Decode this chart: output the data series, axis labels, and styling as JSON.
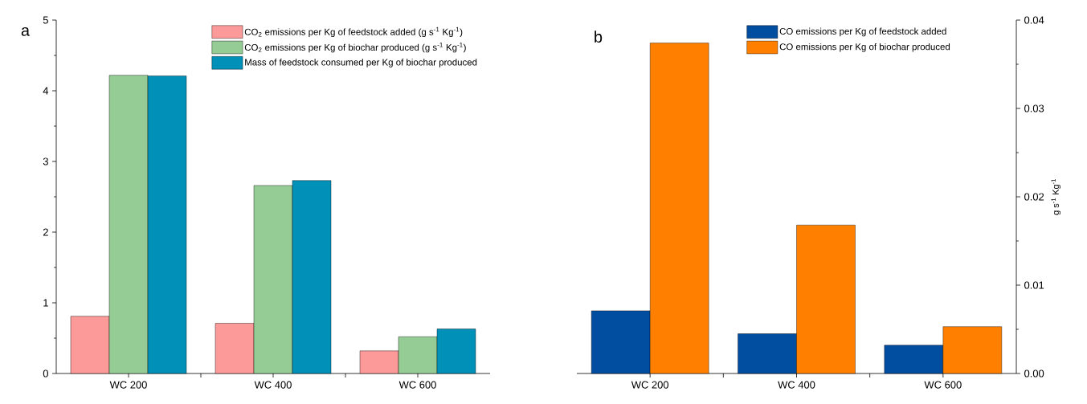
{
  "chart_data": [
    {
      "type": "bar",
      "annotations": [
        "a"
      ],
      "categories": [
        "WC 200",
        "WC 400",
        "WC 600"
      ],
      "series": [
        {
          "name": "CO$_{2}$ emissions per Kg of feedstock added (g s$^{-1}$ Kg$^{-1}$)",
          "color": "#fb9a99",
          "values": [
            0.81,
            0.71,
            0.32
          ]
        },
        {
          "name": "CO$_{2}$ emissions per Kg of biochar produced (g s$^{-1}$ Kg$^{-1}$)",
          "color": "#95cc95",
          "values": [
            4.22,
            2.66,
            0.52
          ]
        },
        {
          "name": "Mass of feedstock consumed per Kg of biochar produced",
          "color": "#0090b8",
          "values": [
            4.21,
            2.73,
            0.63
          ]
        }
      ],
      "ylim": [
        0,
        5
      ],
      "yticks": [
        0,
        1,
        2,
        3,
        4,
        5
      ],
      "legend": "top right"
    },
    {
      "type": "bar",
      "annotations": [
        "b"
      ],
      "ylabel": "g s$^{-1}$ Kg$^{-1}$",
      "categories": [
        "WC 200",
        "WC 400",
        "WC 600"
      ],
      "series": [
        {
          "name": "CO emissions per Kg of feedstock added",
          "color": "#014da0",
          "values": [
            0.0071,
            0.0045,
            0.0032
          ]
        },
        {
          "name": "CO emissions per Kg of biochar produced",
          "color": "#ff8000",
          "values": [
            0.0374,
            0.0168,
            0.0053
          ]
        }
      ],
      "ylim": [
        0,
        0.04
      ],
      "yticks": [
        {
          "value": 0,
          "label": "0.00"
        },
        {
          "value": 0.01,
          "label": "0.01"
        },
        {
          "value": 0.02,
          "label": "0.02"
        },
        {
          "value": 0.03,
          "label": "0.03"
        },
        {
          "value": 0.04,
          "label": "0.04"
        }
      ],
      "legend": "top"
    }
  ]
}
